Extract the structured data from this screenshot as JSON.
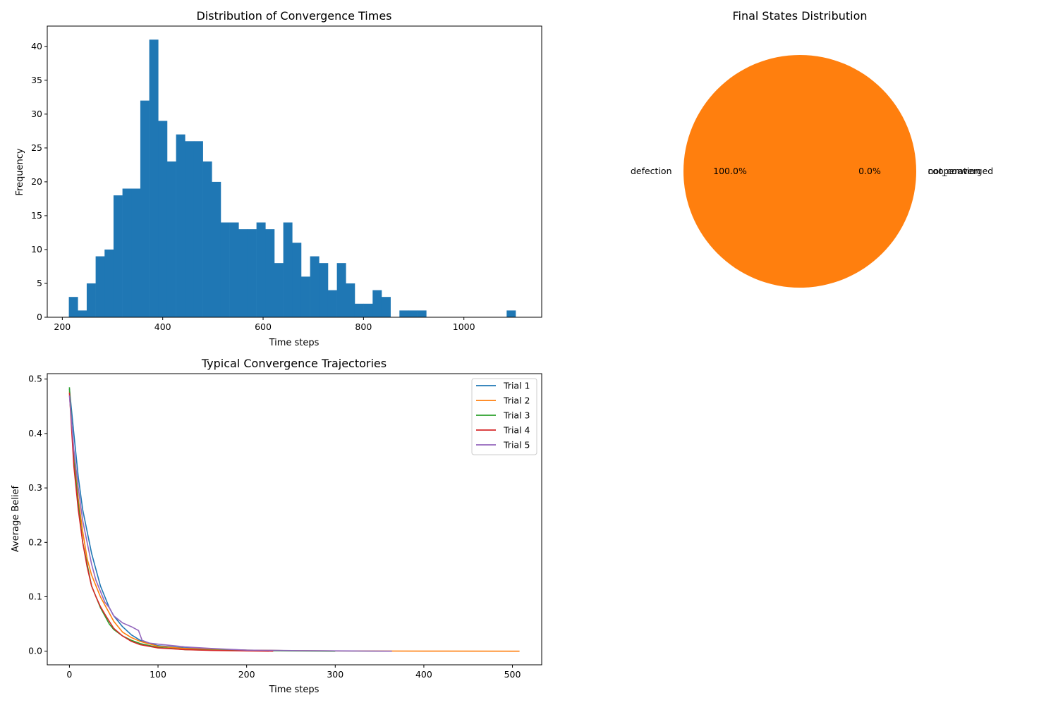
{
  "chart_data": [
    {
      "type": "bar",
      "subtype": "histogram",
      "title": "Distribution of Convergence Times",
      "xlabel": "Time steps",
      "ylabel": "Frequency",
      "xlim": [
        170,
        1155
      ],
      "ylim": [
        0,
        43
      ],
      "xticks": [
        200,
        400,
        600,
        800,
        1000
      ],
      "yticks": [
        0,
        5,
        10,
        15,
        20,
        25,
        30,
        35,
        40
      ],
      "color": "#1f77b4",
      "bin_start": 213,
      "bin_width": 17.8,
      "values": [
        3,
        1,
        5,
        9,
        10,
        18,
        19,
        19,
        32,
        41,
        29,
        23,
        27,
        26,
        26,
        23,
        20,
        14,
        14,
        13,
        13,
        14,
        13,
        8,
        14,
        11,
        6,
        9,
        8,
        4,
        8,
        5,
        2,
        2,
        4,
        3,
        0,
        1,
        1,
        1,
        0,
        0,
        0,
        0,
        0,
        0,
        0,
        0,
        0,
        1
      ]
    },
    {
      "type": "pie",
      "title": "Final States Distribution",
      "slices": [
        {
          "label": "cooperation",
          "value": 0.0,
          "pct": "0.0%",
          "color": "#1f77b4"
        },
        {
          "label": "defection",
          "value": 100.0,
          "pct": "100.0%",
          "color": "#ff7f0e"
        },
        {
          "label": "not_converged",
          "value": 0.0,
          "pct": "0.0%",
          "color": "#2ca02c"
        }
      ]
    },
    {
      "type": "line",
      "title": "Typical Convergence Trajectories",
      "xlabel": "Time steps",
      "ylabel": "Average Belief",
      "xlim": [
        -25,
        533
      ],
      "ylim": [
        -0.025,
        0.51
      ],
      "xticks": [
        0,
        100,
        200,
        300,
        400,
        500
      ],
      "yticks": [
        0.0,
        0.1,
        0.2,
        0.3,
        0.4,
        0.5
      ],
      "ytick_labels": [
        "0.0",
        "0.1",
        "0.2",
        "0.3",
        "0.4",
        "0.5"
      ],
      "legend": "top-right",
      "series": [
        {
          "name": "Trial 1",
          "color": "#1f77b4",
          "x": [
            0,
            5,
            10,
            15,
            20,
            25,
            30,
            35,
            40,
            45,
            50,
            60,
            70,
            80,
            100,
            130,
            160,
            200,
            250,
            300,
            364
          ],
          "y": [
            0.482,
            0.4,
            0.32,
            0.26,
            0.22,
            0.18,
            0.15,
            0.12,
            0.1,
            0.08,
            0.065,
            0.045,
            0.03,
            0.02,
            0.01,
            0.006,
            0.004,
            0.002,
            0.001,
            0.0005,
            0.0
          ]
        },
        {
          "name": "Trial 2",
          "color": "#ff7f0e",
          "x": [
            0,
            5,
            10,
            15,
            20,
            25,
            30,
            35,
            40,
            45,
            50,
            60,
            70,
            80,
            100,
            130,
            160,
            200,
            250,
            300,
            400,
            508
          ],
          "y": [
            0.478,
            0.36,
            0.28,
            0.22,
            0.17,
            0.14,
            0.12,
            0.1,
            0.085,
            0.07,
            0.055,
            0.035,
            0.025,
            0.018,
            0.009,
            0.005,
            0.003,
            0.002,
            0.001,
            0.0005,
            0.0002,
            0.0
          ]
        },
        {
          "name": "Trial 3",
          "color": "#2ca02c",
          "x": [
            0,
            5,
            10,
            15,
            20,
            25,
            30,
            35,
            40,
            45,
            50,
            60,
            70,
            80,
            100,
            130,
            160,
            200,
            250,
            300
          ],
          "y": [
            0.485,
            0.35,
            0.27,
            0.2,
            0.16,
            0.12,
            0.1,
            0.08,
            0.065,
            0.05,
            0.04,
            0.028,
            0.02,
            0.014,
            0.007,
            0.003,
            0.002,
            0.001,
            0.0005,
            0.0
          ]
        },
        {
          "name": "Trial 4",
          "color": "#d62728",
          "x": [
            0,
            5,
            10,
            15,
            20,
            25,
            30,
            35,
            40,
            45,
            50,
            60,
            70,
            80,
            100,
            130,
            160,
            200,
            230
          ],
          "y": [
            0.475,
            0.34,
            0.26,
            0.2,
            0.155,
            0.12,
            0.1,
            0.082,
            0.068,
            0.055,
            0.042,
            0.028,
            0.018,
            0.012,
            0.006,
            0.003,
            0.0015,
            0.0005,
            0.0
          ]
        },
        {
          "name": "Trial 5",
          "color": "#9467bd",
          "x": [
            0,
            5,
            10,
            15,
            20,
            25,
            30,
            35,
            40,
            45,
            50,
            60,
            70,
            78,
            82,
            90,
            100,
            130,
            160,
            200,
            260,
            320,
            364
          ],
          "y": [
            0.47,
            0.37,
            0.3,
            0.24,
            0.2,
            0.16,
            0.13,
            0.11,
            0.09,
            0.08,
            0.065,
            0.052,
            0.045,
            0.038,
            0.02,
            0.015,
            0.013,
            0.008,
            0.005,
            0.002,
            0.001,
            0.0005,
            0.0
          ]
        }
      ]
    }
  ]
}
